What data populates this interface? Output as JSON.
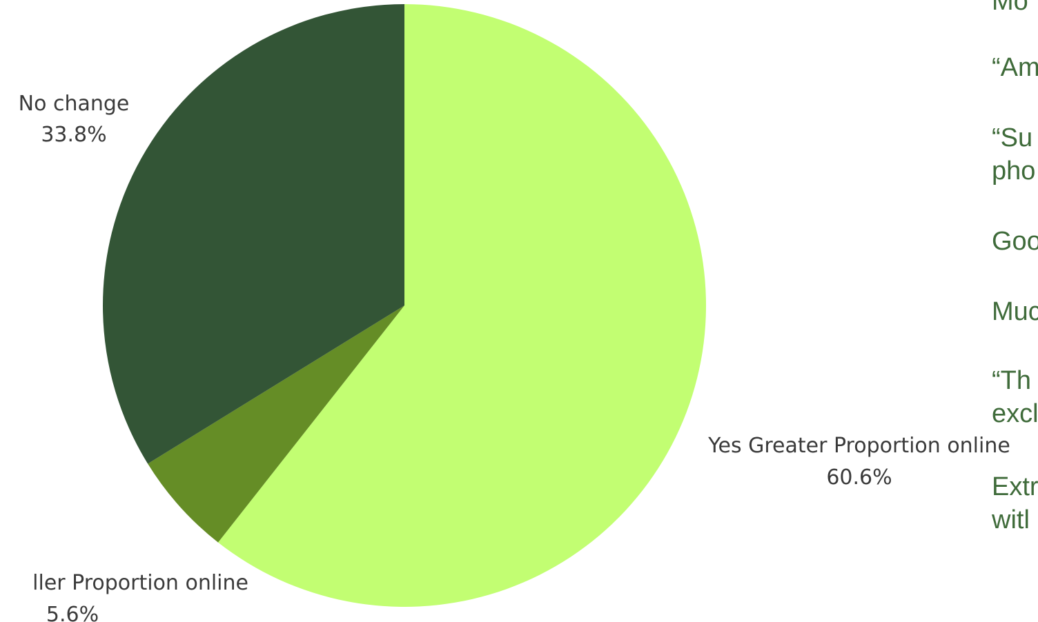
{
  "chart_data": {
    "type": "pie",
    "slices": [
      {
        "label": "Yes Greater Proportion online",
        "value": 60.6,
        "value_label": "60.6%",
        "color": "#c2fe72"
      },
      {
        "label": "ller Proportion online",
        "value": 5.6,
        "value_label": "5.6%",
        "color": "#658d26"
      },
      {
        "label": "No change",
        "value": 33.8,
        "value_label": "33.8%",
        "color": "#335536"
      }
    ],
    "start_angle_deg": 0,
    "direction": "clockwise"
  },
  "side_panel": {
    "lines": [
      "Mo",
      "“Am",
      "“Su",
      "pho",
      "Goo",
      "Muc",
      "“Th",
      "excl",
      "Extr",
      "witl"
    ]
  }
}
